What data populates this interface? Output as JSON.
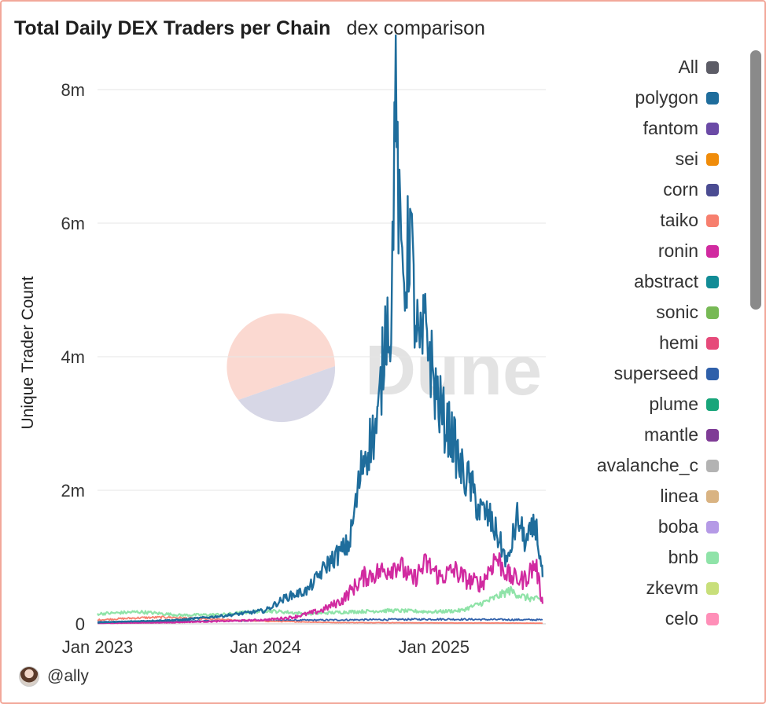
{
  "header": {
    "title": "Total Daily DEX Traders per Chain",
    "subtitle": "dex comparison"
  },
  "footer": {
    "author": "@ally"
  },
  "watermark": {
    "text": "Dune"
  },
  "colors": {
    "All": "#5c5c66",
    "polygon": "#1f6d9c",
    "fantom": "#6b4aa6",
    "sei": "#f08c0a",
    "corn": "#4b4c92",
    "taiko": "#f77f6e",
    "ronin": "#d12aa0",
    "abstract": "#128c96",
    "sonic": "#77b955",
    "hemi": "#e64a7a",
    "superseed": "#2f60aa",
    "plume": "#18a57a",
    "mantle": "#7f3c96",
    "avalanche_c": "#b3b3b3",
    "linea": "#d9b382",
    "boba": "#b59ae6",
    "bnb": "#8fe3a8",
    "zkevm": "#c8df7a",
    "celo": "#ff8fb8"
  },
  "chart_data": {
    "type": "line",
    "title": "Total Daily DEX Traders per Chain",
    "subtitle": "dex comparison",
    "xlabel": "",
    "ylabel": "Unique Trader Count",
    "x_ticks": [
      "Jan 2023",
      "Jan 2024",
      "Jan 2025"
    ],
    "y_ticks": [
      "0",
      "2m",
      "4m",
      "6m",
      "8m"
    ],
    "xlim": [
      "2023-01-01",
      "2025-09-01"
    ],
    "ylim": [
      0,
      8000000
    ],
    "grid": true,
    "legend": [
      "All",
      "polygon",
      "fantom",
      "sei",
      "corn",
      "taiko",
      "ronin",
      "abstract",
      "sonic",
      "hemi",
      "superseed",
      "plume",
      "mantle",
      "avalanche_c",
      "linea",
      "boba",
      "bnb",
      "zkevm",
      "celo"
    ],
    "legend_position": "right",
    "series": [
      {
        "name": "polygon",
        "x": [
          "2023-01-01",
          "2023-04-01",
          "2023-07-01",
          "2023-10-01",
          "2024-01-01",
          "2024-02-15",
          "2024-04-01",
          "2024-05-15",
          "2024-07-01",
          "2024-08-01",
          "2024-09-01",
          "2024-09-20",
          "2024-10-01",
          "2024-10-08",
          "2024-10-20",
          "2024-11-01",
          "2024-11-10",
          "2024-11-20",
          "2024-12-01",
          "2024-12-15",
          "2025-01-01",
          "2025-01-20",
          "2025-02-10",
          "2025-03-01",
          "2025-03-20",
          "2025-04-10",
          "2025-05-01",
          "2025-05-20",
          "2025-06-10",
          "2025-07-01",
          "2025-07-20",
          "2025-08-10",
          "2025-08-25"
        ],
        "values": [
          20000,
          40000,
          60000,
          120000,
          200000,
          400000,
          500000,
          900000,
          1200000,
          2500000,
          3000000,
          4600000,
          4500000,
          8100000,
          5500000,
          5200000,
          6000000,
          4700000,
          4000000,
          4500000,
          3600000,
          3100000,
          2800000,
          2300000,
          2100000,
          1700000,
          1600000,
          1300000,
          900000,
          1600000,
          1200000,
          1500000,
          700000
        ]
      },
      {
        "name": "ronin",
        "x": [
          "2023-01-01",
          "2023-06-01",
          "2023-10-01",
          "2024-01-01",
          "2024-03-01",
          "2024-05-01",
          "2024-06-15",
          "2024-08-01",
          "2024-09-15",
          "2024-10-15",
          "2024-11-15",
          "2024-12-15",
          "2025-01-15",
          "2025-02-15",
          "2025-03-15",
          "2025-04-15",
          "2025-05-15",
          "2025-06-15",
          "2025-07-15",
          "2025-08-10",
          "2025-08-25"
        ],
        "values": [
          10000,
          20000,
          40000,
          60000,
          100000,
          200000,
          350000,
          700000,
          800000,
          900000,
          650000,
          900000,
          700000,
          800000,
          650000,
          600000,
          1000000,
          700000,
          650000,
          900000,
          300000
        ]
      },
      {
        "name": "bnb",
        "x": [
          "2023-01-01",
          "2023-04-01",
          "2023-07-01",
          "2023-10-01",
          "2024-01-01",
          "2024-04-01",
          "2024-07-01",
          "2024-10-01",
          "2025-01-01",
          "2025-03-01",
          "2025-05-01",
          "2025-06-15",
          "2025-07-15",
          "2025-08-25"
        ],
        "values": [
          150000,
          180000,
          130000,
          140000,
          200000,
          150000,
          180000,
          200000,
          180000,
          200000,
          350000,
          500000,
          400000,
          350000
        ]
      },
      {
        "name": "taiko",
        "x": [
          "2023-01-01",
          "2023-04-01",
          "2023-06-01",
          "2023-09-01",
          "2024-01-01",
          "2024-06-01",
          "2025-01-01",
          "2025-08-25"
        ],
        "values": [
          60000,
          90000,
          100000,
          70000,
          40000,
          20000,
          15000,
          10000
        ]
      },
      {
        "name": "superseed",
        "x": [
          "2023-01-01",
          "2023-07-01",
          "2024-01-01",
          "2024-07-01",
          "2025-01-01",
          "2025-08-25"
        ],
        "values": [
          30000,
          40000,
          50000,
          60000,
          70000,
          60000
        ]
      }
    ]
  }
}
